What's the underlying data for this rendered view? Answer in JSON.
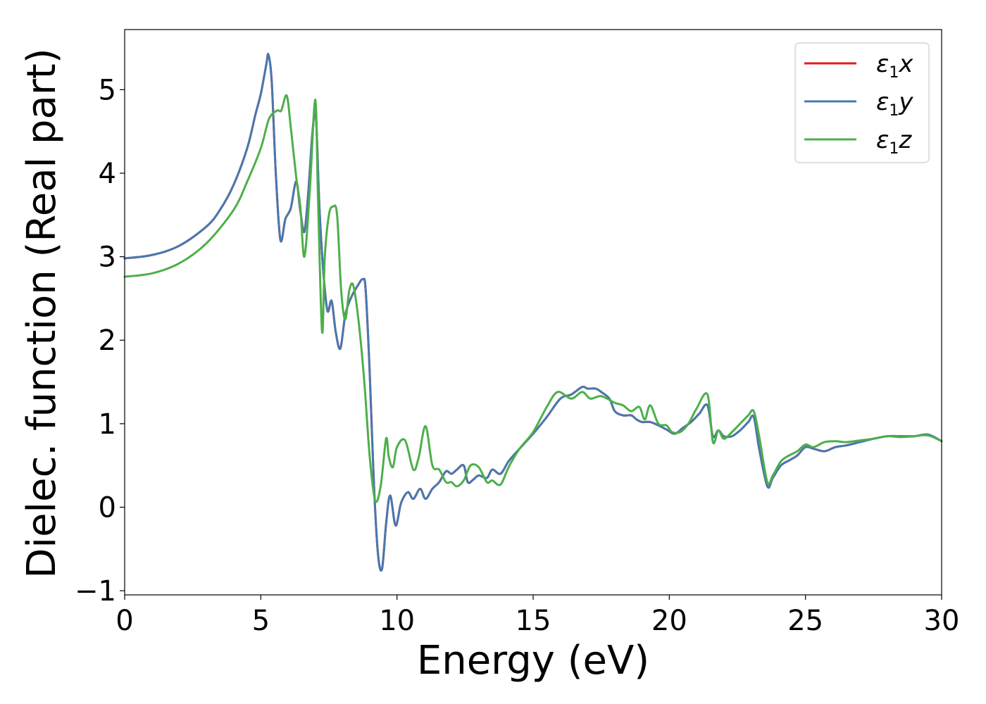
{
  "chart_data": {
    "type": "line",
    "xlabel": "Energy (eV)",
    "ylabel": "Dielec. function (Real part)",
    "xlim": [
      0,
      30
    ],
    "ylim": [
      -1.05,
      5.72
    ],
    "xticks": [
      0,
      5,
      10,
      15,
      20,
      25,
      30
    ],
    "xtick_labels": [
      "0",
      "5",
      "10",
      "15",
      "20",
      "25",
      "30"
    ],
    "yticks": [
      -1,
      0,
      1,
      2,
      3,
      4,
      5
    ],
    "ytick_labels": [
      "−1",
      "0",
      "1",
      "2",
      "3",
      "4",
      "5"
    ],
    "grid": false,
    "legend_position": "top-right",
    "series": [
      {
        "name": "ε1x",
        "legend_main": "ε",
        "legend_sub": "1",
        "legend_var": "x",
        "color": "#e41a1c",
        "x": [
          0,
          1,
          2,
          3,
          3.5,
          4,
          4.5,
          4.8,
          5.0,
          5.2,
          5.28,
          5.4,
          5.55,
          5.72,
          5.9,
          6.1,
          6.3,
          6.45,
          6.6,
          6.75,
          6.9,
          7.02,
          7.15,
          7.3,
          7.45,
          7.6,
          7.75,
          7.92,
          8.1,
          8.3,
          8.55,
          8.75,
          8.85,
          9.0,
          9.15,
          9.3,
          9.45,
          9.6,
          9.75,
          9.95,
          10.15,
          10.4,
          10.6,
          10.85,
          11.05,
          11.3,
          11.55,
          11.8,
          12.0,
          12.2,
          12.45,
          12.6,
          12.8,
          13.0,
          13.3,
          13.5,
          13.8,
          14.1,
          14.5,
          15.0,
          15.5,
          16.0,
          16.4,
          16.8,
          17.0,
          17.3,
          17.5,
          17.8,
          18.0,
          18.3,
          18.6,
          18.8,
          19.0,
          19.3,
          19.6,
          19.9,
          20.2,
          20.5,
          20.8,
          21.1,
          21.4,
          21.6,
          21.8,
          22.0,
          22.3,
          22.6,
          22.9,
          23.1,
          23.3,
          23.6,
          23.8,
          24.1,
          24.4,
          24.7,
          25.0,
          25.3,
          25.7,
          26.1,
          26.5,
          27.0,
          27.5,
          28.0,
          28.5,
          29.0,
          29.5,
          30.0
        ],
        "y": [
          2.98,
          3.02,
          3.13,
          3.36,
          3.56,
          3.86,
          4.3,
          4.7,
          4.95,
          5.3,
          5.42,
          5.1,
          4.0,
          3.2,
          3.45,
          3.58,
          3.9,
          3.55,
          3.3,
          3.8,
          4.5,
          4.7,
          3.6,
          2.8,
          2.35,
          2.47,
          2.1,
          1.9,
          2.3,
          2.5,
          2.65,
          2.73,
          2.6,
          1.6,
          0.3,
          -0.55,
          -0.74,
          -0.2,
          0.14,
          -0.22,
          0.05,
          0.18,
          0.1,
          0.22,
          0.1,
          0.22,
          0.3,
          0.43,
          0.4,
          0.45,
          0.5,
          0.3,
          0.33,
          0.38,
          0.35,
          0.45,
          0.4,
          0.55,
          0.7,
          0.88,
          1.08,
          1.3,
          1.35,
          1.44,
          1.42,
          1.42,
          1.38,
          1.3,
          1.15,
          1.1,
          1.1,
          1.05,
          1.02,
          1.02,
          0.98,
          0.93,
          0.88,
          0.95,
          1.02,
          1.12,
          1.22,
          0.85,
          0.92,
          0.85,
          0.85,
          0.92,
          1.02,
          1.08,
          0.7,
          0.25,
          0.35,
          0.5,
          0.56,
          0.62,
          0.72,
          0.7,
          0.67,
          0.72,
          0.74,
          0.78,
          0.82,
          0.85,
          0.85,
          0.85,
          0.87,
          0.79
        ]
      },
      {
        "name": "ε1y",
        "legend_main": "ε",
        "legend_sub": "1",
        "legend_var": "y",
        "color": "#4878b0",
        "x": [
          0,
          1,
          2,
          3,
          3.5,
          4,
          4.5,
          4.8,
          5.0,
          5.2,
          5.28,
          5.4,
          5.55,
          5.72,
          5.9,
          6.1,
          6.3,
          6.45,
          6.6,
          6.75,
          6.9,
          7.02,
          7.15,
          7.3,
          7.45,
          7.6,
          7.75,
          7.92,
          8.1,
          8.3,
          8.55,
          8.75,
          8.85,
          9.0,
          9.15,
          9.3,
          9.45,
          9.6,
          9.75,
          9.95,
          10.15,
          10.4,
          10.6,
          10.85,
          11.05,
          11.3,
          11.55,
          11.8,
          12.0,
          12.2,
          12.45,
          12.6,
          12.8,
          13.0,
          13.3,
          13.5,
          13.8,
          14.1,
          14.5,
          15.0,
          15.5,
          16.0,
          16.4,
          16.8,
          17.0,
          17.3,
          17.5,
          17.8,
          18.0,
          18.3,
          18.6,
          18.8,
          19.0,
          19.3,
          19.6,
          19.9,
          20.2,
          20.5,
          20.8,
          21.1,
          21.4,
          21.6,
          21.8,
          22.0,
          22.3,
          22.6,
          22.9,
          23.1,
          23.3,
          23.6,
          23.8,
          24.1,
          24.4,
          24.7,
          25.0,
          25.3,
          25.7,
          26.1,
          26.5,
          27.0,
          27.5,
          28.0,
          28.5,
          29.0,
          29.5,
          30.0
        ],
        "y": [
          2.98,
          3.02,
          3.13,
          3.36,
          3.56,
          3.86,
          4.3,
          4.7,
          4.95,
          5.3,
          5.42,
          5.1,
          4.0,
          3.2,
          3.45,
          3.58,
          3.9,
          3.55,
          3.3,
          3.8,
          4.5,
          4.7,
          3.6,
          2.8,
          2.35,
          2.47,
          2.1,
          1.9,
          2.3,
          2.5,
          2.65,
          2.73,
          2.6,
          1.6,
          0.3,
          -0.55,
          -0.74,
          -0.2,
          0.14,
          -0.22,
          0.05,
          0.18,
          0.1,
          0.22,
          0.1,
          0.22,
          0.3,
          0.43,
          0.4,
          0.45,
          0.5,
          0.3,
          0.33,
          0.38,
          0.35,
          0.45,
          0.4,
          0.55,
          0.7,
          0.88,
          1.08,
          1.3,
          1.35,
          1.44,
          1.42,
          1.42,
          1.38,
          1.3,
          1.15,
          1.1,
          1.1,
          1.05,
          1.02,
          1.02,
          0.98,
          0.93,
          0.88,
          0.95,
          1.02,
          1.12,
          1.22,
          0.85,
          0.92,
          0.85,
          0.85,
          0.92,
          1.02,
          1.08,
          0.7,
          0.25,
          0.35,
          0.5,
          0.56,
          0.62,
          0.72,
          0.7,
          0.67,
          0.72,
          0.74,
          0.78,
          0.82,
          0.85,
          0.85,
          0.85,
          0.87,
          0.79
        ]
      },
      {
        "name": "ε1z",
        "legend_main": "ε",
        "legend_sub": "1",
        "legend_var": "z",
        "color": "#4daf4a",
        "x": [
          0,
          1,
          2,
          3,
          4,
          4.5,
          5.0,
          5.3,
          5.6,
          5.75,
          5.95,
          6.1,
          6.3,
          6.45,
          6.6,
          6.8,
          7.0,
          7.1,
          7.25,
          7.35,
          7.5,
          7.65,
          7.8,
          7.95,
          8.1,
          8.25,
          8.4,
          8.6,
          8.8,
          9.0,
          9.2,
          9.4,
          9.6,
          9.7,
          9.85,
          10.0,
          10.3,
          10.6,
          10.8,
          11.05,
          11.3,
          11.55,
          11.8,
          12.0,
          12.2,
          12.45,
          12.7,
          13.0,
          13.3,
          13.5,
          13.8,
          14.1,
          14.5,
          15.0,
          15.5,
          15.9,
          16.4,
          16.8,
          17.1,
          17.5,
          18.0,
          18.3,
          18.6,
          18.9,
          19.1,
          19.3,
          19.6,
          19.9,
          20.1,
          20.4,
          20.7,
          21.0,
          21.4,
          21.6,
          21.8,
          22.0,
          22.3,
          22.6,
          22.9,
          23.1,
          23.3,
          23.6,
          23.8,
          24.1,
          24.4,
          24.7,
          25.0,
          25.3,
          25.7,
          26.1,
          26.5,
          27.0,
          27.5,
          28.0,
          28.5,
          29.0,
          29.5,
          30.0
        ],
        "y": [
          2.76,
          2.8,
          2.92,
          3.16,
          3.56,
          3.9,
          4.3,
          4.65,
          4.75,
          4.75,
          4.93,
          4.55,
          3.95,
          3.6,
          3.0,
          3.8,
          4.88,
          3.7,
          2.1,
          3.0,
          3.5,
          3.6,
          3.5,
          2.6,
          2.25,
          2.6,
          2.65,
          2.2,
          1.5,
          0.6,
          0.08,
          0.25,
          0.82,
          0.6,
          0.48,
          0.72,
          0.8,
          0.45,
          0.6,
          0.97,
          0.5,
          0.45,
          0.3,
          0.3,
          0.25,
          0.32,
          0.5,
          0.48,
          0.3,
          0.32,
          0.27,
          0.48,
          0.7,
          0.9,
          1.2,
          1.38,
          1.3,
          1.38,
          1.3,
          1.33,
          1.25,
          1.22,
          1.15,
          1.2,
          1.05,
          1.22,
          1.0,
          0.98,
          0.9,
          0.9,
          1.0,
          1.18,
          1.35,
          0.78,
          0.92,
          0.82,
          0.9,
          1.0,
          1.1,
          1.15,
          0.85,
          0.3,
          0.38,
          0.55,
          0.62,
          0.67,
          0.75,
          0.72,
          0.78,
          0.79,
          0.78,
          0.8,
          0.82,
          0.85,
          0.84,
          0.85,
          0.86,
          0.79
        ]
      }
    ]
  }
}
